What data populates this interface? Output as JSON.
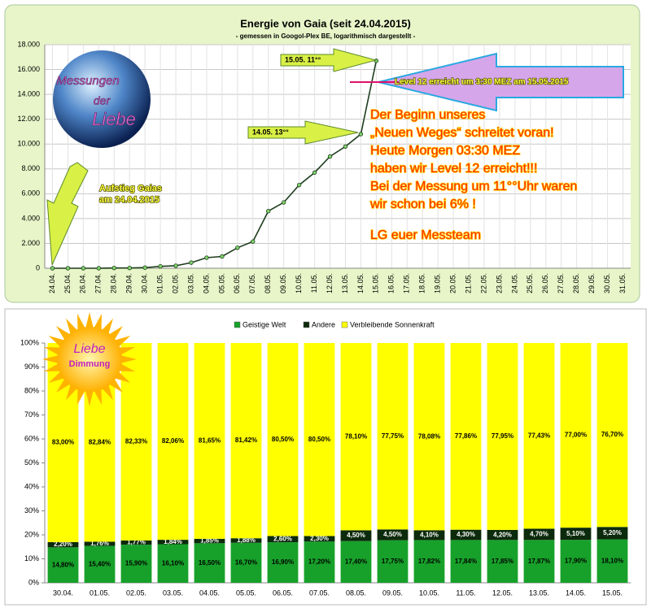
{
  "chart_data": [
    {
      "type": "line",
      "title": "Energie von Gaia (seit 24.04.2015)",
      "subtitle": "- gemessen in Googol-Plex BE, logarithmisch dargestellt -",
      "categories": [
        "24.04.",
        "25.04.",
        "26.04.",
        "27.04.",
        "28.04.",
        "29.04.",
        "30.04.",
        "01.05.",
        "02.05.",
        "03.05.",
        "04.05.",
        "05.05.",
        "06.05.",
        "07.05.",
        "08.05.",
        "09.05.",
        "10.05.",
        "11.05.",
        "12.05.",
        "13.05.",
        "14.05.",
        "15.05.",
        "16.05.",
        "17.05.",
        "18.05.",
        "19.05.",
        "20.05.",
        "21.05.",
        "22.05.",
        "23.05.",
        "24.05.",
        "25.05.",
        "26.05.",
        "27.05.",
        "28.05.",
        "29.05.",
        "30.05.",
        "31.05."
      ],
      "values": [
        0,
        0,
        0,
        0,
        20,
        20,
        50,
        150,
        200,
        450,
        850,
        950,
        1650,
        2150,
        4600,
        5300,
        6700,
        7700,
        9000,
        9800,
        10800,
        16700,
        null,
        null,
        null,
        null,
        null,
        null,
        null,
        null,
        null,
        null,
        null,
        null,
        null,
        null,
        null,
        null
      ],
      "color": "#1e3d1e",
      "ylim": [
        0,
        18000
      ],
      "yticks": [
        0,
        {
          "value": 2000,
          "label": "2.000"
        },
        {
          "value": 4000,
          "label": "4.000"
        },
        {
          "value": 6000,
          "label": "6.000"
        },
        {
          "value": 8000,
          "label": "8.000"
        },
        {
          "value": 10000,
          "label": "10.000"
        },
        {
          "value": 12000,
          "label": "12.000"
        },
        {
          "value": 14000,
          "label": "14.000"
        },
        {
          "value": 16000,
          "label": "16.000"
        },
        {
          "value": 18000,
          "label": "18.000"
        }
      ],
      "grid": true,
      "annotations": [
        "15.05.  11°°",
        "14.05.  13°°",
        "Level 12 erreicht um 3:30 MEZ am 15.05.2015",
        "Aufstieg Gaias",
        "am 24.04.2015",
        "Der Beginn unseres",
        "„Neuen Weges“ schreitet voran!",
        "Heute Morgen 03:30 MEZ",
        "haben wir Level 12 erreicht!!!",
        "Bei der Messung um 11°°Uhr waren",
        "wir schon bei 6% !",
        "LG euer Messteam"
      ],
      "logo_text": [
        "Messungen",
        "der",
        "Liebe"
      ]
    },
    {
      "type": "stacked_bar",
      "categories": [
        "30.04.",
        "01.05.",
        "02.05.",
        "03.05.",
        "04.05.",
        "05.05.",
        "06.05.",
        "07.05.",
        "08.05.",
        "09.05.",
        "10.05.",
        "11.05.",
        "12.05.",
        "13.05.",
        "14.05.",
        "15.05."
      ],
      "series": [
        {
          "name": "Geistige Welt",
          "color": "#17a12a",
          "values": [
            14.8,
            15.4,
            15.9,
            16.1,
            16.5,
            16.7,
            16.9,
            17.2,
            17.4,
            17.75,
            17.82,
            17.84,
            17.85,
            17.87,
            17.9,
            18.1
          ],
          "value_labels": [
            "14,80%",
            "15,40%",
            "15,90%",
            "16,10%",
            "16,50%",
            "16,70%",
            "16,90%",
            "17,20%",
            "17,40%",
            "17,75%",
            "17,82%",
            "17,84%",
            "17,85%",
            "17,87%",
            "17,90%",
            "18,10%"
          ]
        },
        {
          "name": "Andere",
          "color": "#0c2a0c",
          "values": [
            2.2,
            1.76,
            1.77,
            1.84,
            1.85,
            1.88,
            2.6,
            2.3,
            4.5,
            4.5,
            4.1,
            4.3,
            4.2,
            4.7,
            5.1,
            5.2
          ],
          "value_labels": [
            "2,20%",
            "1,76%",
            "1,77%",
            "1,84%",
            "1,85%",
            "1,88%",
            "2,60%",
            "2,30%",
            "4,50%",
            "4,50%",
            "4,10%",
            "4,30%",
            "4,20%",
            "4,70%",
            "5,10%",
            "5,20%"
          ]
        },
        {
          "name": "Verbleibende Sonnenkraft",
          "color": "#ffff00",
          "values": [
            83,
            82.84,
            82.33,
            82.06,
            81.65,
            81.42,
            80.5,
            80.5,
            78.1,
            77.75,
            78.08,
            77.86,
            77.95,
            77.43,
            77,
            76.7
          ],
          "value_labels": [
            "83,00%",
            "82,84%",
            "82,33%",
            "82,06%",
            "81,65%",
            "81,42%",
            "80,50%",
            "80,50%",
            "78,10%",
            "77,75%",
            "78,08%",
            "77,86%",
            "77,95%",
            "77,43%",
            "77,00%",
            "76,70%"
          ]
        }
      ],
      "ylim": [
        0,
        100
      ],
      "yticks": [
        {
          "value": 0,
          "label": "0%"
        },
        {
          "value": 10,
          "label": "10%"
        },
        {
          "value": 20,
          "label": "20%"
        },
        {
          "value": 30,
          "label": "30%"
        },
        {
          "value": 40,
          "label": "40%"
        },
        {
          "value": 50,
          "label": "50%"
        },
        {
          "value": 60,
          "label": "60%"
        },
        {
          "value": 70,
          "label": "70%"
        },
        {
          "value": 80,
          "label": "80%"
        },
        {
          "value": 90,
          "label": "90%"
        },
        {
          "value": 100,
          "label": "100%"
        }
      ],
      "legend": "top",
      "logo_text": [
        "Liebe",
        "Dimmung"
      ]
    }
  ]
}
